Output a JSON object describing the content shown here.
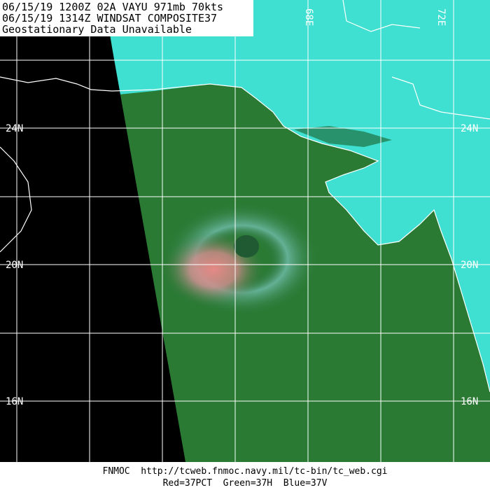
{
  "header": {
    "lines": [
      "06/15/19 1200Z 02A VAYU 971mb 70kts",
      "06/15/19 1314Z  WINDSAT COMPOSITE37",
      "Geostationary Data Unavailable"
    ]
  },
  "grid_labels": {
    "latitudes": [
      "24N",
      "20N",
      "16N"
    ],
    "longitudes": [
      "68E",
      "72E"
    ]
  },
  "footer": {
    "lines": [
      "FNMOC  http://tcweb.fnmoc.navy.mil/tc-bin/tc_web.cgi",
      "Red=37PCT  Green=37H  Blue=37V"
    ]
  }
}
